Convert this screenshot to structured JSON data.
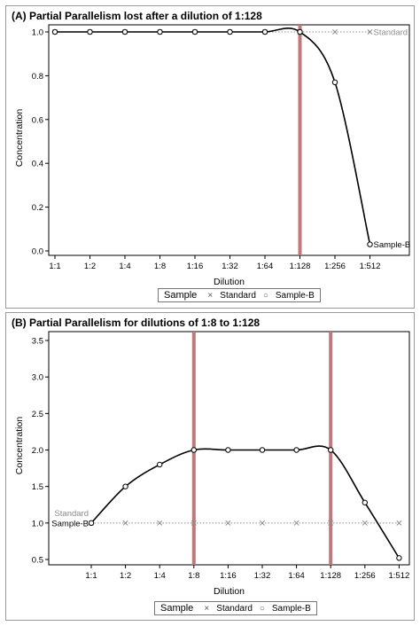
{
  "chart_data": [
    {
      "type": "line",
      "title": "(A) Partial Parallelism lost after a dilution of 1:128",
      "xlabel": "Dilution",
      "ylabel": "Concentration",
      "categories": [
        "1:1",
        "1:2",
        "1:4",
        "1:8",
        "1:16",
        "1:32",
        "1:64",
        "1:128",
        "1:256",
        "1:512"
      ],
      "ylim": [
        0.0,
        1.0
      ],
      "yticks": [
        "0.0",
        "0.2",
        "0.4",
        "0.6",
        "0.8",
        "1.0"
      ],
      "series": [
        {
          "name": "Standard",
          "marker": "x",
          "style": "dotted",
          "values": [
            1,
            1,
            1,
            1,
            1,
            1,
            1,
            1,
            1,
            1
          ]
        },
        {
          "name": "Sample-B",
          "marker": "circle",
          "style": "solid",
          "values": [
            1,
            1,
            1,
            1,
            1,
            1,
            1,
            1,
            0.77,
            0.03
          ]
        }
      ],
      "series_labels": [
        {
          "text": "Standard",
          "at": "1:512",
          "value": 1.0,
          "side": "right"
        },
        {
          "text": "Sample-B",
          "at": "1:512",
          "value": 0.03,
          "side": "right"
        }
      ],
      "reference_lines": [
        "1:128"
      ],
      "legend": {
        "title": "Sample",
        "entries": [
          "Standard",
          "Sample-B"
        ],
        "placement": "bottom"
      }
    },
    {
      "type": "line",
      "title": "(B) Partial Parallelism for dilutions of 1:8 to 1:128",
      "xlabel": "Dilution",
      "ylabel": "Concentration",
      "categories": [
        "1:1",
        "1:2",
        "1:4",
        "1:8",
        "1:16",
        "1:32",
        "1:64",
        "1:128",
        "1:256",
        "1:512"
      ],
      "ylim": [
        0.5,
        3.5
      ],
      "yticks": [
        "0.5",
        "1.0",
        "1.5",
        "2.0",
        "2.5",
        "3.0",
        "3.5"
      ],
      "series": [
        {
          "name": "Standard",
          "marker": "x",
          "style": "dotted",
          "values": [
            1,
            1,
            1,
            1,
            1,
            1,
            1,
            1,
            1,
            1
          ]
        },
        {
          "name": "Sample-B",
          "marker": "circle",
          "style": "solid",
          "values": [
            1.0,
            1.5,
            1.8,
            2.0,
            2.0,
            2.0,
            2.0,
            2.0,
            1.28,
            0.52
          ]
        }
      ],
      "series_labels": [
        {
          "text": "Standard",
          "at": "1:1",
          "value": 1.0,
          "side": "above-left"
        },
        {
          "text": "Sample-B",
          "at": "1:1",
          "value": 1.0,
          "side": "left"
        }
      ],
      "reference_lines": [
        "1:8",
        "1:128"
      ],
      "legend": {
        "title": "Sample",
        "entries": [
          "Standard",
          "Sample-B"
        ],
        "placement": "bottom"
      }
    }
  ],
  "colors": {
    "refline": "#c0797b",
    "axis": "#000000",
    "standard": "#8c8c8c",
    "sample": "#000000",
    "label_gray": "#8c8c8c"
  }
}
